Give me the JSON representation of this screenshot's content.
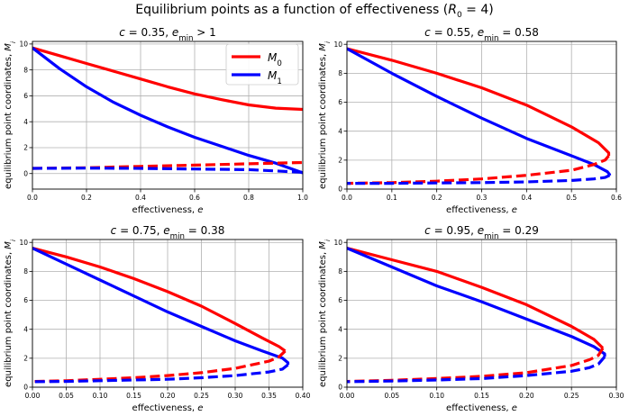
{
  "suptitle_parts": {
    "prefix": "Equilibrium points as a function of effectiveness (",
    "var": "R",
    "sub": "0",
    "suffix": " = 4)"
  },
  "colors": {
    "M0": "#ff0000",
    "M1": "#0000ff",
    "grid": "#b0b0b0"
  },
  "chart_data": [
    {
      "type": "line",
      "title": {
        "c": "0.35",
        "rel": ">",
        "emin": "1"
      },
      "xlabel": "effectiveness, e",
      "ylabel": "equilibrium point coordinates, M_i",
      "xlim": [
        0,
        1.0
      ],
      "ylim": [
        -1.2,
        10.2
      ],
      "xticks": [
        "0.0",
        "0.2",
        "0.4",
        "0.6",
        "0.8",
        "1.0"
      ],
      "yticks": [
        "0",
        "2",
        "4",
        "6",
        "8",
        "10"
      ],
      "grid": true,
      "legend": {
        "position": "upper-right",
        "entries": [
          {
            "label": "M",
            "sub": "0",
            "color_key": "M0"
          },
          {
            "label": "M",
            "sub": "1",
            "color_key": "M1"
          }
        ]
      },
      "series": [
        {
          "name": "M0 stable",
          "color_key": "M0",
          "dashed": false,
          "x": [
            0,
            0.1,
            0.2,
            0.3,
            0.4,
            0.5,
            0.6,
            0.7,
            0.8,
            0.9,
            1.0
          ],
          "y": [
            9.7,
            9.1,
            8.5,
            7.9,
            7.3,
            6.7,
            6.15,
            5.7,
            5.3,
            5.05,
            4.95
          ]
        },
        {
          "name": "M1 stable",
          "color_key": "M1",
          "dashed": false,
          "x": [
            0,
            0.1,
            0.2,
            0.3,
            0.4,
            0.5,
            0.6,
            0.7,
            0.8,
            0.9,
            1.0
          ],
          "y": [
            9.7,
            8.1,
            6.7,
            5.5,
            4.5,
            3.6,
            2.8,
            2.1,
            1.4,
            0.8,
            0.05
          ]
        },
        {
          "name": "M0 unstable",
          "color_key": "M0",
          "dashed": true,
          "x": [
            0,
            0.2,
            0.4,
            0.6,
            0.8,
            1.0
          ],
          "y": [
            0.4,
            0.45,
            0.55,
            0.65,
            0.75,
            0.85
          ]
        },
        {
          "name": "M1 unstable",
          "color_key": "M1",
          "dashed": true,
          "x": [
            0,
            0.2,
            0.4,
            0.6,
            0.8,
            1.0
          ],
          "y": [
            0.4,
            0.42,
            0.4,
            0.35,
            0.3,
            0.1
          ]
        }
      ]
    },
    {
      "type": "line",
      "title": {
        "c": "0.55",
        "rel": "=",
        "emin": "0.58"
      },
      "xlabel": "effectiveness, e",
      "ylabel": "equilibrium point coordinates, M_i",
      "xlim": [
        0,
        0.6
      ],
      "ylim": [
        0,
        10.2
      ],
      "xticks": [
        "0.0",
        "0.1",
        "0.2",
        "0.3",
        "0.4",
        "0.5",
        "0.6"
      ],
      "yticks": [
        "0",
        "2",
        "4",
        "6",
        "8",
        "10"
      ],
      "grid": true,
      "series": [
        {
          "name": "M0 stable",
          "color_key": "M0",
          "dashed": false,
          "x": [
            0,
            0.1,
            0.2,
            0.3,
            0.4,
            0.5,
            0.56,
            0.583,
            0.583
          ],
          "y": [
            9.7,
            8.9,
            8.0,
            7.0,
            5.8,
            4.3,
            3.2,
            2.5,
            2.3
          ]
        },
        {
          "name": "M1 stable",
          "color_key": "M1",
          "dashed": false,
          "x": [
            0,
            0.1,
            0.2,
            0.3,
            0.4,
            0.5,
            0.55,
            0.58,
            0.585,
            0.585
          ],
          "y": [
            9.7,
            8.0,
            6.4,
            4.9,
            3.5,
            2.3,
            1.7,
            1.2,
            1.0,
            0.95
          ]
        },
        {
          "name": "M0 unstable",
          "color_key": "M0",
          "dashed": true,
          "x": [
            0.583,
            0.575,
            0.55,
            0.5,
            0.4,
            0.3,
            0.2,
            0.1,
            0
          ],
          "y": [
            2.3,
            2.0,
            1.7,
            1.3,
            0.95,
            0.7,
            0.55,
            0.45,
            0.4
          ]
        },
        {
          "name": "M1 unstable",
          "color_key": "M1",
          "dashed": true,
          "x": [
            0.585,
            0.575,
            0.55,
            0.5,
            0.4,
            0.3,
            0.2,
            0.1,
            0
          ],
          "y": [
            0.95,
            0.8,
            0.7,
            0.6,
            0.5,
            0.45,
            0.42,
            0.4,
            0.4
          ]
        }
      ]
    },
    {
      "type": "line",
      "title": {
        "c": "0.75",
        "rel": "=",
        "emin": "0.38"
      },
      "xlabel": "effectiveness, e",
      "ylabel": "equilibrium point coordinates, M_i",
      "xlim": [
        0,
        0.4
      ],
      "ylim": [
        0,
        10.2
      ],
      "xticks": [
        "0.00",
        "0.05",
        "0.10",
        "0.15",
        "0.20",
        "0.25",
        "0.30",
        "0.35",
        "0.40"
      ],
      "yticks": [
        "0",
        "2",
        "4",
        "6",
        "8",
        "10"
      ],
      "grid": true,
      "series": [
        {
          "name": "M0 stable",
          "color_key": "M0",
          "dashed": false,
          "x": [
            0,
            0.05,
            0.1,
            0.15,
            0.2,
            0.25,
            0.3,
            0.34,
            0.365,
            0.374
          ],
          "y": [
            9.6,
            9.0,
            8.3,
            7.5,
            6.6,
            5.6,
            4.4,
            3.4,
            2.8,
            2.5
          ]
        },
        {
          "name": "M1 stable",
          "color_key": "M1",
          "dashed": false,
          "x": [
            0,
            0.05,
            0.1,
            0.15,
            0.2,
            0.25,
            0.3,
            0.34,
            0.37,
            0.378,
            0.378
          ],
          "y": [
            9.6,
            8.5,
            7.4,
            6.3,
            5.2,
            4.2,
            3.2,
            2.5,
            2.0,
            1.7,
            1.55
          ]
        },
        {
          "name": "M0 unstable",
          "color_key": "M0",
          "dashed": true,
          "x": [
            0.374,
            0.365,
            0.35,
            0.3,
            0.25,
            0.2,
            0.15,
            0.1,
            0.05,
            0
          ],
          "y": [
            2.5,
            2.1,
            1.8,
            1.3,
            1.0,
            0.8,
            0.65,
            0.55,
            0.45,
            0.4
          ]
        },
        {
          "name": "M1 unstable",
          "color_key": "M1",
          "dashed": true,
          "x": [
            0.378,
            0.37,
            0.35,
            0.3,
            0.25,
            0.2,
            0.15,
            0.1,
            0.05,
            0
          ],
          "y": [
            1.55,
            1.25,
            1.05,
            0.8,
            0.65,
            0.55,
            0.5,
            0.45,
            0.4,
            0.38
          ]
        }
      ]
    },
    {
      "type": "line",
      "title": {
        "c": "0.95",
        "rel": "=",
        "emin": "0.29"
      },
      "xlabel": "effectiveness, e",
      "ylabel": "equilibrium point coordinates, M_i",
      "xlim": [
        0,
        0.3
      ],
      "ylim": [
        0,
        10.2
      ],
      "xticks": [
        "0.00",
        "0.05",
        "0.10",
        "0.15",
        "0.20",
        "0.25",
        "0.30"
      ],
      "yticks": [
        "0",
        "2",
        "4",
        "6",
        "8",
        "10"
      ],
      "grid": true,
      "series": [
        {
          "name": "M0 stable",
          "color_key": "M0",
          "dashed": false,
          "x": [
            0,
            0.05,
            0.1,
            0.15,
            0.2,
            0.25,
            0.275,
            0.285
          ],
          "y": [
            9.6,
            8.8,
            8.0,
            6.9,
            5.7,
            4.2,
            3.3,
            2.7
          ]
        },
        {
          "name": "M1 stable",
          "color_key": "M1",
          "dashed": false,
          "x": [
            0,
            0.05,
            0.1,
            0.15,
            0.2,
            0.25,
            0.275,
            0.287,
            0.287
          ],
          "y": [
            9.6,
            8.3,
            7.0,
            5.9,
            4.7,
            3.5,
            2.8,
            2.3,
            2.1
          ]
        },
        {
          "name": "M0 unstable",
          "color_key": "M0",
          "dashed": true,
          "x": [
            0.285,
            0.28,
            0.27,
            0.25,
            0.2,
            0.15,
            0.1,
            0.05,
            0
          ],
          "y": [
            2.7,
            2.2,
            1.9,
            1.5,
            1.0,
            0.75,
            0.6,
            0.48,
            0.4
          ]
        },
        {
          "name": "M1 unstable",
          "color_key": "M1",
          "dashed": true,
          "x": [
            0.287,
            0.28,
            0.27,
            0.25,
            0.2,
            0.15,
            0.1,
            0.05,
            0
          ],
          "y": [
            2.1,
            1.6,
            1.35,
            1.1,
            0.8,
            0.6,
            0.5,
            0.42,
            0.38
          ]
        }
      ]
    }
  ]
}
